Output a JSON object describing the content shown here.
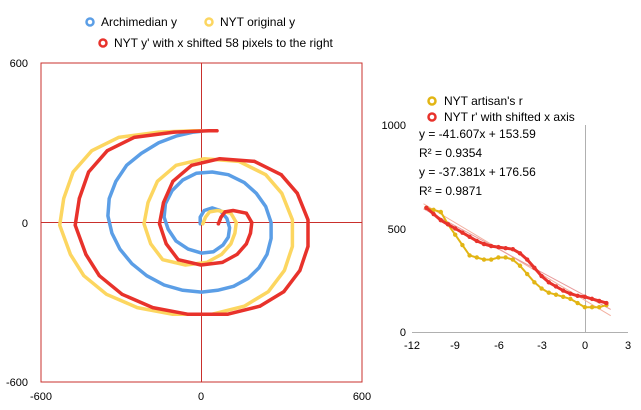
{
  "colors": {
    "archimedian": "#5b9ee6",
    "nyt_original": "#fcd660",
    "nyt_shifted": "#e8322b",
    "artisan": "#e2b514",
    "axis": "#c9302c",
    "trend1": "#f3b0a0",
    "trend2": "#e89a9a"
  },
  "chart_data": [
    {
      "type": "line",
      "title": "",
      "xlabel": "",
      "ylabel": "",
      "xlim": [
        -600,
        600
      ],
      "ylim": [
        -600,
        600
      ],
      "x_ticks": [
        "-600",
        "0",
        "600"
      ],
      "y_ticks": [
        "600",
        "0",
        "-600"
      ],
      "grid": false,
      "legend_position": "top",
      "series": [
        {
          "name": "Archimedian y",
          "color_key": "archimedian",
          "points": [
            [
              0,
              0
            ],
            [
              -5,
              -5
            ],
            [
              -5,
              20
            ],
            [
              10,
              45
            ],
            [
              40,
              55
            ],
            [
              70,
              45
            ],
            [
              95,
              15
            ],
            [
              105,
              -20
            ],
            [
              100,
              -55
            ],
            [
              80,
              -85
            ],
            [
              45,
              -110
            ],
            [
              0,
              -115
            ],
            [
              -50,
              -100
            ],
            [
              -95,
              -70
            ],
            [
              -125,
              -25
            ],
            [
              -140,
              20
            ],
            [
              -135,
              70
            ],
            [
              -110,
              120
            ],
            [
              -70,
              160
            ],
            [
              -20,
              185
            ],
            [
              40,
              190
            ],
            [
              100,
              180
            ],
            [
              160,
              150
            ],
            [
              205,
              110
            ],
            [
              240,
              60
            ],
            [
              260,
              0
            ],
            [
              260,
              -60
            ],
            [
              245,
              -120
            ],
            [
              215,
              -170
            ],
            [
              175,
              -210
            ],
            [
              120,
              -240
            ],
            [
              60,
              -255
            ],
            [
              0,
              -262
            ],
            [
              -70,
              -255
            ],
            [
              -140,
              -235
            ],
            [
              -205,
              -200
            ],
            [
              -260,
              -155
            ],
            [
              -305,
              -100
            ],
            [
              -335,
              -40
            ],
            [
              -350,
              25
            ],
            [
              -345,
              90
            ],
            [
              -320,
              155
            ],
            [
              -280,
              215
            ],
            [
              -225,
              260
            ],
            [
              -160,
              300
            ],
            [
              -95,
              325
            ],
            [
              -30,
              340
            ],
            [
              0,
              343
            ]
          ]
        },
        {
          "name": "NYT original y",
          "color_key": "nyt_original",
          "points": [
            [
              5,
              -5
            ],
            [
              15,
              20
            ],
            [
              30,
              40
            ],
            [
              60,
              45
            ],
            [
              110,
              35
            ],
            [
              130,
              0
            ],
            [
              125,
              -40
            ],
            [
              110,
              -80
            ],
            [
              75,
              -120
            ],
            [
              20,
              -150
            ],
            [
              -60,
              -160
            ],
            [
              -145,
              -140
            ],
            [
              -190,
              -80
            ],
            [
              -215,
              -5
            ],
            [
              -200,
              75
            ],
            [
              -165,
              155
            ],
            [
              -95,
              215
            ],
            [
              10,
              240
            ],
            [
              140,
              230
            ],
            [
              240,
              180
            ],
            [
              300,
              110
            ],
            [
              340,
              10
            ],
            [
              340,
              -90
            ],
            [
              310,
              -180
            ],
            [
              250,
              -260
            ],
            [
              160,
              -315
            ],
            [
              40,
              -345
            ],
            [
              -110,
              -345
            ],
            [
              -240,
              -320
            ],
            [
              -355,
              -270
            ],
            [
              -440,
              -200
            ],
            [
              -490,
              -120
            ],
            [
              -530,
              -10
            ],
            [
              -515,
              90
            ],
            [
              -480,
              190
            ],
            [
              -410,
              270
            ],
            [
              -310,
              320
            ],
            [
              -160,
              340
            ],
            [
              -30,
              345
            ],
            [
              0,
              345
            ]
          ]
        },
        {
          "name": "NYT y' with x shifted 58 pixels to the right",
          "color_key": "nyt_shifted",
          "points": [
            [
              63,
              -5
            ],
            [
              73,
              20
            ],
            [
              88,
              40
            ],
            [
              118,
              45
            ],
            [
              168,
              35
            ],
            [
              188,
              0
            ],
            [
              183,
              -40
            ],
            [
              168,
              -80
            ],
            [
              133,
              -120
            ],
            [
              78,
              -150
            ],
            [
              -2,
              -160
            ],
            [
              -87,
              -140
            ],
            [
              -132,
              -80
            ],
            [
              -157,
              -5
            ],
            [
              -142,
              75
            ],
            [
              -107,
              155
            ],
            [
              -37,
              215
            ],
            [
              68,
              240
            ],
            [
              198,
              230
            ],
            [
              298,
              180
            ],
            [
              358,
              110
            ],
            [
              398,
              10
            ],
            [
              398,
              -90
            ],
            [
              368,
              -180
            ],
            [
              308,
              -260
            ],
            [
              218,
              -315
            ],
            [
              98,
              -345
            ],
            [
              -52,
              -345
            ],
            [
              -182,
              -320
            ],
            [
              -297,
              -270
            ],
            [
              -382,
              -200
            ],
            [
              -432,
              -120
            ],
            [
              -472,
              -10
            ],
            [
              -457,
              90
            ],
            [
              -422,
              190
            ],
            [
              -352,
              270
            ],
            [
              -252,
              320
            ],
            [
              -102,
              340
            ],
            [
              28,
              345
            ],
            [
              58,
              345
            ]
          ]
        }
      ]
    },
    {
      "type": "scatter",
      "title": "",
      "xlabel": "",
      "ylabel": "",
      "xlim": [
        -12,
        3
      ],
      "ylim": [
        0,
        1000
      ],
      "x_ticks": [
        "-12",
        "-9",
        "-6",
        "-3",
        "0",
        "3"
      ],
      "y_ticks": [
        "1000",
        "500",
        "0"
      ],
      "grid": false,
      "legend_position": "top",
      "series": [
        {
          "name": "NYT artisan's r",
          "color_key": "artisan",
          "points": [
            [
              -11,
              600
            ],
            [
              -10.5,
              590
            ],
            [
              -10,
              580
            ],
            [
              -9.5,
              520
            ],
            [
              -9,
              470
            ],
            [
              -8.5,
              420
            ],
            [
              -8,
              370
            ],
            [
              -7.5,
              360
            ],
            [
              -7,
              350
            ],
            [
              -6.5,
              350
            ],
            [
              -6,
              360
            ],
            [
              -5.5,
              360
            ],
            [
              -5,
              350
            ],
            [
              -4.5,
              320
            ],
            [
              -4,
              280
            ],
            [
              -3.5,
              240
            ],
            [
              -3,
              210
            ],
            [
              -2.5,
              190
            ],
            [
              -2,
              180
            ],
            [
              -1.5,
              170
            ],
            [
              -1,
              160
            ],
            [
              -0.5,
              140
            ],
            [
              0,
              120
            ],
            [
              0.5,
              120
            ],
            [
              1,
              120
            ],
            [
              1.5,
              130
            ]
          ]
        },
        {
          "name": "NYT r' with shifted x axis",
          "color_key": "nyt_shifted",
          "points": [
            [
              -11,
              600
            ],
            [
              -10.5,
              570
            ],
            [
              -10,
              540
            ],
            [
              -9.5,
              520
            ],
            [
              -9,
              500
            ],
            [
              -8.5,
              480
            ],
            [
              -8,
              460
            ],
            [
              -7.5,
              440
            ],
            [
              -7,
              425
            ],
            [
              -6.5,
              415
            ],
            [
              -6,
              410
            ],
            [
              -5.5,
              405
            ],
            [
              -5,
              400
            ],
            [
              -4.5,
              380
            ],
            [
              -4,
              350
            ],
            [
              -3.5,
              310
            ],
            [
              -3,
              270
            ],
            [
              -2.5,
              240
            ],
            [
              -2,
              220
            ],
            [
              -1.5,
              200
            ],
            [
              -1,
              185
            ],
            [
              -0.5,
              175
            ],
            [
              0,
              170
            ],
            [
              0.5,
              160
            ],
            [
              1,
              150
            ],
            [
              1.5,
              140
            ]
          ]
        }
      ],
      "trendlines": [
        {
          "equation": "y = -41.607x + 153.59",
          "r2": "R² = 0.9354",
          "slope": -41.607,
          "intercept": 153.59,
          "color_key": "trend1"
        },
        {
          "equation": "y = -37.381x + 176.56",
          "r2": "R² = 0.9871",
          "slope": -37.381,
          "intercept": 176.56,
          "color_key": "trend2"
        }
      ]
    }
  ]
}
